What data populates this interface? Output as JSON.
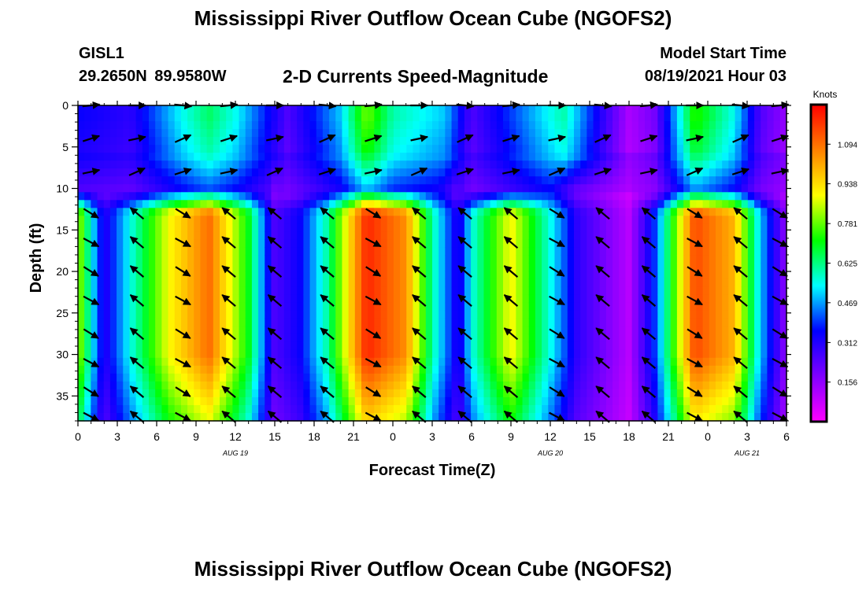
{
  "header": {
    "title": "Mississippi River Outflow Ocean Cube (NGOFS2)",
    "station_id": "GISL1",
    "station_coords": "29.2650N  89.9580W",
    "subtitle": "2-D Currents Speed-Magnitude",
    "model_start_label": "Model Start Time",
    "model_start_value": "08/19/2021 Hour 03"
  },
  "footer": {
    "title": "Mississippi River Outflow Ocean Cube (NGOFS2)"
  },
  "chart_data": {
    "type": "heatmap",
    "title": "2-D Currents Speed-Magnitude",
    "xlabel": "Forecast Time(Z)",
    "ylabel": "Depth (ft)",
    "x_range_hours": [
      0,
      54
    ],
    "x_tick_labels": [
      "0",
      "3",
      "6",
      "9",
      "12",
      "15",
      "18",
      "21",
      "0",
      "3",
      "6",
      "9",
      "12",
      "15",
      "18",
      "21",
      "0",
      "3",
      "6"
    ],
    "date_labels": [
      {
        "label": "AUG 19",
        "at_hour": 12
      },
      {
        "label": "AUG 20",
        "at_hour": 36
      },
      {
        "label": "AUG 21",
        "at_hour": 51
      }
    ],
    "y_range_ft": [
      0,
      38
    ],
    "y_reversed": true,
    "y_ticks": [
      0,
      5,
      10,
      15,
      20,
      25,
      30,
      35
    ],
    "colorbar": {
      "unit": "Knots",
      "range": [
        0,
        1.25
      ],
      "ticks": [
        0.156,
        0.312,
        0.469,
        0.625,
        0.781,
        0.938,
        1.094
      ],
      "colors": [
        "#ff00ff",
        "#8000ff",
        "#0000ff",
        "#00ffff",
        "#00ff00",
        "#ffff00",
        "#ff8000",
        "#ff0000"
      ]
    },
    "surface_layer": {
      "depth_ft": [
        0,
        8
      ],
      "speed_knots": [
        {
          "hour": 0,
          "speed": 0.35
        },
        {
          "hour": 4,
          "speed": 0.3
        },
        {
          "hour": 8,
          "speed": 0.55
        },
        {
          "hour": 10,
          "speed": 0.65
        },
        {
          "hour": 12,
          "speed": 0.55
        },
        {
          "hour": 16,
          "speed": 0.25
        },
        {
          "hour": 20,
          "speed": 0.5
        },
        {
          "hour": 22,
          "speed": 0.8
        },
        {
          "hour": 24,
          "speed": 0.6
        },
        {
          "hour": 28,
          "speed": 0.5
        },
        {
          "hour": 30,
          "speed": 0.25
        },
        {
          "hour": 34,
          "speed": 0.45
        },
        {
          "hour": 37,
          "speed": 0.6
        },
        {
          "hour": 40,
          "speed": 0.3
        },
        {
          "hour": 42,
          "speed": 0.12
        },
        {
          "hour": 44,
          "speed": 0.2
        },
        {
          "hour": 47,
          "speed": 0.75
        },
        {
          "hour": 50,
          "speed": 0.55
        },
        {
          "hour": 52,
          "speed": 0.25
        },
        {
          "hour": 54,
          "speed": 0.15
        }
      ]
    },
    "lower_layer": {
      "depth_ft": [
        10,
        38
      ],
      "speed_knots": [
        {
          "hour": 0,
          "speed": 0.85
        },
        {
          "hour": 1,
          "speed": 0.55
        },
        {
          "hour": 2,
          "speed": 0.3
        },
        {
          "hour": 4,
          "speed": 0.55
        },
        {
          "hour": 7,
          "speed": 0.9
        },
        {
          "hour": 10,
          "speed": 1.1
        },
        {
          "hour": 13,
          "speed": 0.7
        },
        {
          "hour": 15,
          "speed": 0.25
        },
        {
          "hour": 17,
          "speed": 0.35
        },
        {
          "hour": 19,
          "speed": 0.6
        },
        {
          "hour": 22,
          "speed": 1.2
        },
        {
          "hour": 25,
          "speed": 1.05
        },
        {
          "hour": 27,
          "speed": 0.6
        },
        {
          "hour": 29,
          "speed": 0.3
        },
        {
          "hour": 30,
          "speed": 0.55
        },
        {
          "hour": 33,
          "speed": 0.9
        },
        {
          "hour": 36,
          "speed": 0.55
        },
        {
          "hour": 38,
          "speed": 0.3
        },
        {
          "hour": 40,
          "speed": 0.2
        },
        {
          "hour": 42,
          "speed": 0.1
        },
        {
          "hour": 44,
          "speed": 0.4
        },
        {
          "hour": 47,
          "speed": 1.15
        },
        {
          "hour": 50,
          "speed": 1.0
        },
        {
          "hour": 52,
          "speed": 0.5
        },
        {
          "hour": 54,
          "speed": 0.15
        }
      ]
    },
    "vector_hours": [
      1,
      4.5,
      8,
      11.5,
      15,
      19,
      22.5,
      26,
      29.5,
      33,
      36.5,
      40,
      43.5,
      47,
      50.5,
      53.5
    ],
    "vector_depths_ft": [
      0,
      4,
      8,
      13,
      16.5,
      20,
      23.5,
      27.5,
      31,
      34.5,
      37.5
    ]
  }
}
